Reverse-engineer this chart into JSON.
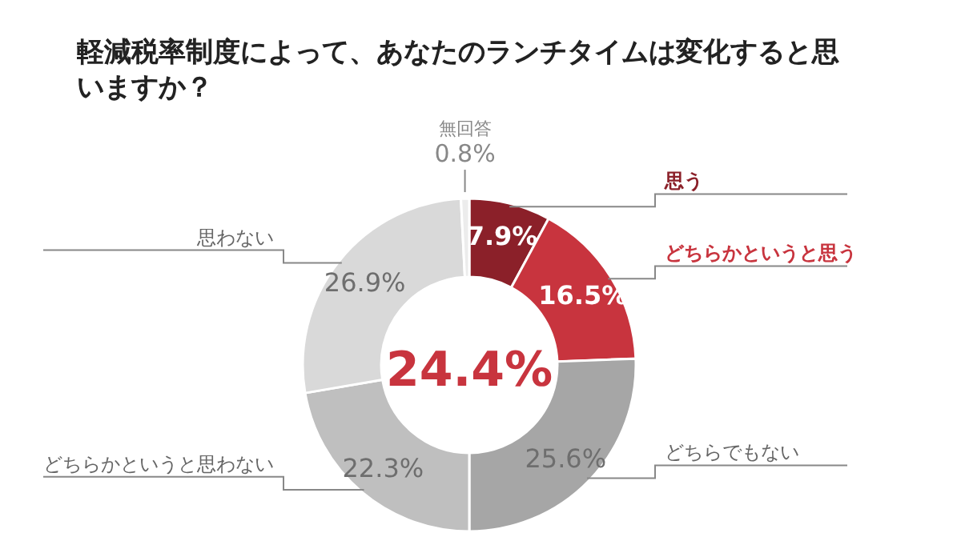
{
  "chart_data": {
    "type": "donut",
    "title": "軽減税率制度によって、あなたのランチタイムは変化すると思いますか？",
    "categories": [
      "思う",
      "どちらかというと思う",
      "どちらでもない",
      "どちらかというと思わない",
      "思わない",
      "無回答"
    ],
    "values": [
      7.9,
      16.5,
      25.6,
      22.3,
      26.9,
      0.8
    ],
    "colors": [
      "#8b2029",
      "#c8343e",
      "#a6a6a6",
      "#bfbfbf",
      "#d9d9d9",
      "#ececec"
    ],
    "value_labels": [
      "7.9%",
      "16.5%",
      "25.6%",
      "22.3%",
      "26.9%",
      "0.8%"
    ],
    "annotations": [
      "24.4%"
    ],
    "legend": false
  }
}
